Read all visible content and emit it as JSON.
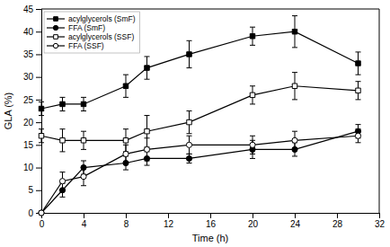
{
  "chart_data": {
    "type": "line",
    "xlabel": "Time (h)",
    "ylabel": "GLA (%)",
    "x": [
      0,
      2,
      4,
      8,
      10,
      14,
      20,
      24,
      30
    ],
    "xlim": [
      0,
      32
    ],
    "ylim": [
      0,
      45
    ],
    "xticks": [
      0,
      4,
      8,
      12,
      16,
      20,
      24,
      28,
      32
    ],
    "yticks": [
      0,
      5,
      10,
      15,
      20,
      25,
      30,
      35,
      40,
      45
    ],
    "grid": false,
    "legend": "upper-left",
    "series": [
      {
        "name": "acylglycerols (SmF)",
        "color": "black",
        "marker": "square",
        "line_style": "solid",
        "values": [
          23,
          24,
          24,
          28,
          32,
          35,
          39,
          40,
          33
        ],
        "errors": [
          1.5,
          1.5,
          1.5,
          2.5,
          2.5,
          3.0,
          2.0,
          3.5,
          2.5
        ]
      },
      {
        "name": "FFA (SmF)",
        "color": "black",
        "marker": "circle",
        "line_style": "solid",
        "values": [
          0,
          5,
          10,
          11,
          12,
          12,
          14,
          14,
          18
        ],
        "errors": [
          0,
          1.5,
          1.5,
          1.5,
          1.5,
          1.0,
          2.0,
          1.5,
          1.5
        ]
      },
      {
        "name": "acylglycerols (SSF)",
        "color": "black",
        "marker": "square-open",
        "line_style": "solid",
        "values": [
          17,
          16,
          16,
          16,
          18,
          20,
          26,
          28,
          27
        ],
        "errors": [
          1.5,
          2.5,
          2.0,
          2.5,
          3.5,
          2.5,
          2.0,
          3.0,
          2.0
        ]
      },
      {
        "name": "FFA (SSF)",
        "color": "black",
        "marker": "circle-open",
        "line_style": "solid",
        "values": [
          0,
          7,
          8,
          13,
          14,
          15,
          15,
          16,
          17
        ],
        "errors": [
          0,
          2.0,
          2.0,
          2.0,
          2.5,
          2.0,
          2.0,
          2.0,
          1.5
        ]
      }
    ]
  }
}
